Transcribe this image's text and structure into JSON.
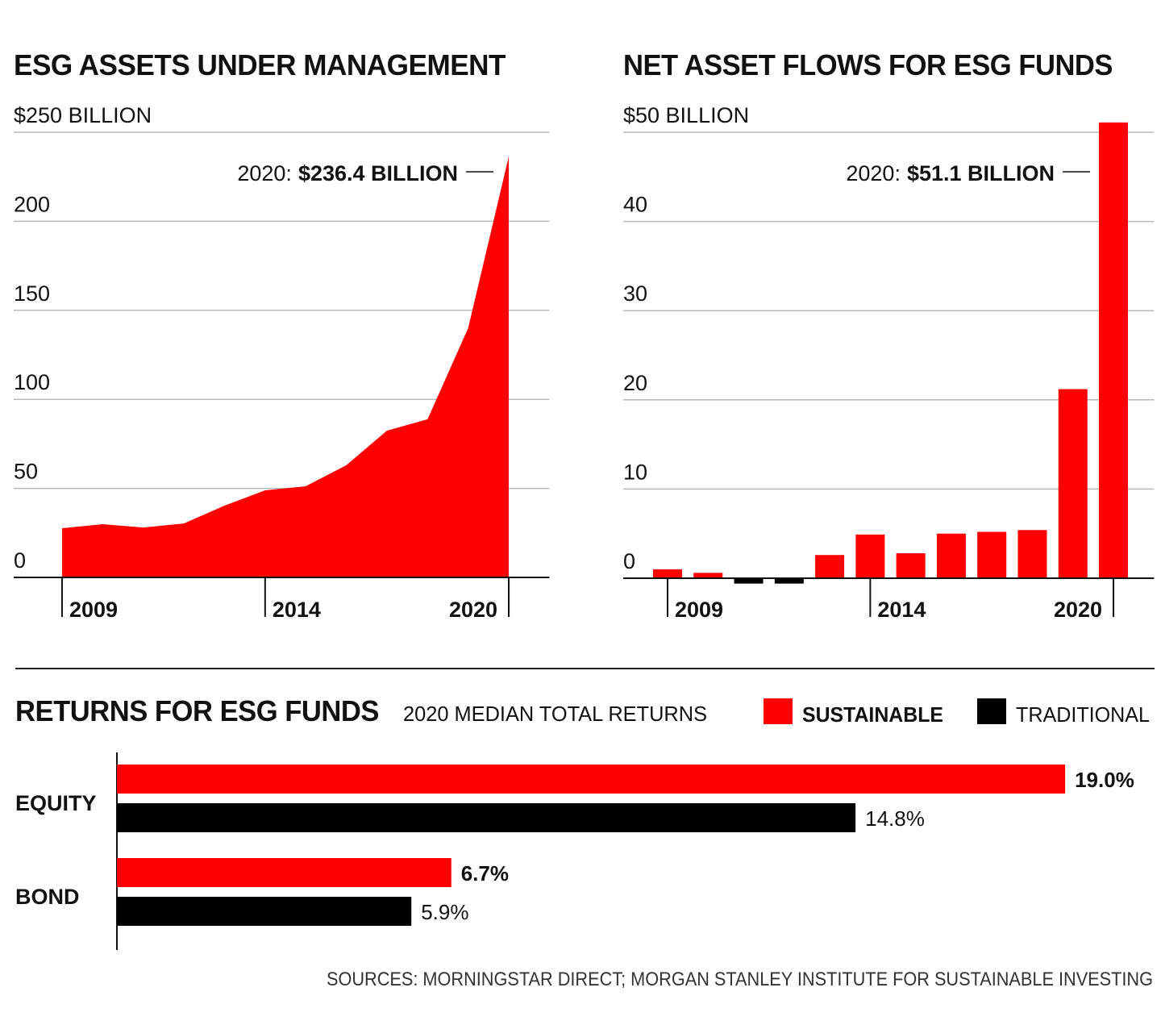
{
  "chart_data": [
    {
      "type": "area",
      "title": "ESG ASSETS UNDER MANAGEMENT",
      "x": [
        2009,
        2010,
        2011,
        2012,
        2013,
        2014,
        2015,
        2016,
        2017,
        2018,
        2019,
        2020
      ],
      "values": [
        27.6,
        29.9,
        28,
        30.3,
        40.3,
        48.9,
        51.2,
        63,
        82.4,
        88.8,
        140,
        236.4
      ],
      "color": "#fe0000",
      "xlim": [
        2008,
        2021
      ],
      "xticks": [
        2009,
        2014,
        2020
      ],
      "ylim": [
        0,
        250
      ],
      "yticks": [
        {
          "value": 250,
          "label": "$250 BILLION"
        },
        200,
        150,
        100,
        50,
        0
      ],
      "grid": true,
      "annotation": {
        "prefix": "2020:",
        "label": "$236.4 BILLION"
      }
    },
    {
      "type": "bar",
      "title": "NET ASSET FLOWS FOR ESG FUNDS",
      "x": [
        2009,
        2010,
        2011,
        2012,
        2013,
        2014,
        2015,
        2016,
        2017,
        2018,
        2019,
        2020
      ],
      "values": [
        1.0,
        0.6,
        -0.6,
        -0.6,
        2.6,
        4.9,
        2.8,
        5.0,
        5.2,
        5.4,
        21.2,
        51.1
      ],
      "color": "#fe0000",
      "negative_color": "#000000",
      "xlim": [
        2008,
        2021
      ],
      "xticks": [
        2009,
        2014,
        2020
      ],
      "ylim": [
        0,
        50
      ],
      "yticks": [
        {
          "value": 50,
          "label": "$50 BILLION"
        },
        40,
        30,
        20,
        10,
        0
      ],
      "grid": true,
      "annotation": {
        "prefix": "2020:",
        "label": "$51.1 BILLION"
      }
    },
    {
      "type": "hbar",
      "title": "RETURNS FOR ESG FUNDS",
      "subtitle": "2020 MEDIAN TOTAL RETURNS",
      "categories": [
        "EQUITY",
        "BOND"
      ],
      "series": [
        {
          "name": "SUSTAINABLE",
          "color": "#fe0000",
          "values": [
            19.0,
            6.7
          ],
          "value_labels": [
            "19.0%",
            "6.7%"
          ]
        },
        {
          "name": "TRADITIONAL",
          "color": "#000000",
          "values": [
            14.8,
            5.9
          ],
          "value_labels": [
            "14.8%",
            "5.9%"
          ]
        }
      ],
      "legend": "top-right"
    }
  ],
  "source": "SOURCES: MORNINGSTAR DIRECT; MORGAN STANLEY INSTITUTE FOR SUSTAINABLE INVESTING"
}
